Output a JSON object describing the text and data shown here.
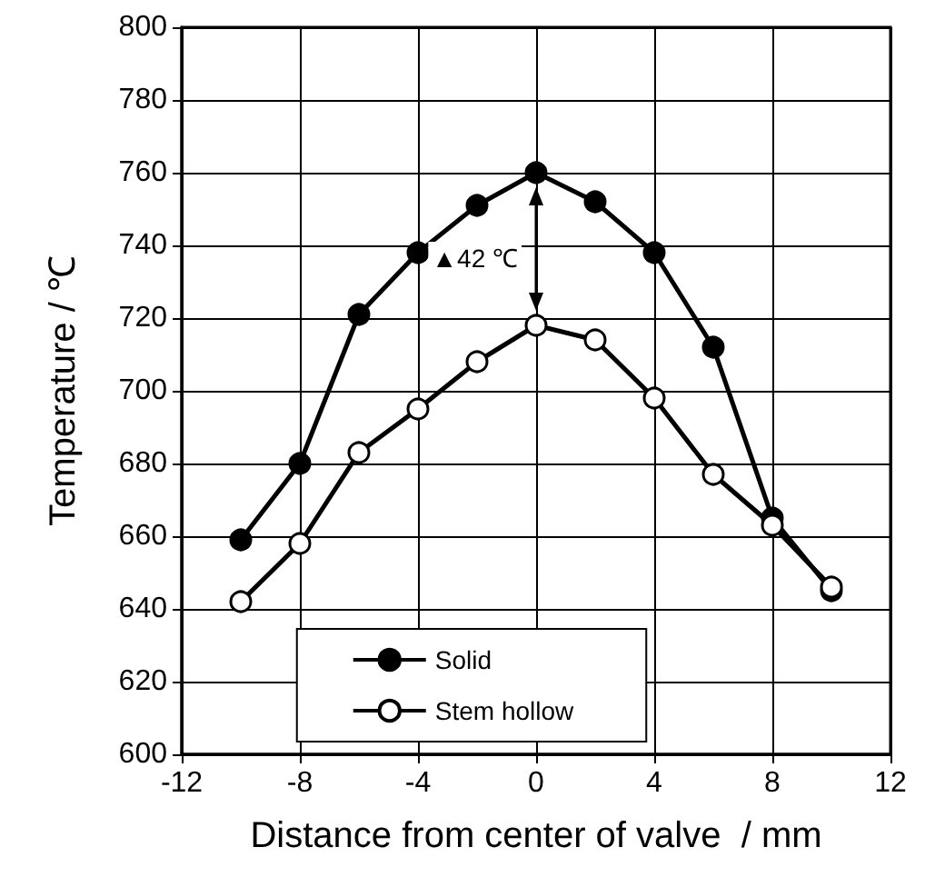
{
  "chart_data": {
    "type": "line",
    "xlabel": "Distance from center of valve  / mm",
    "ylabel": "Temperature / ℃",
    "x": [
      -10,
      -8,
      -6,
      -4,
      -2,
      0,
      2,
      4,
      6,
      8,
      10
    ],
    "series": [
      {
        "name": "Solid",
        "color": "#000000",
        "marker": "circle",
        "values": [
          659,
          680,
          721,
          738,
          751,
          760,
          752,
          738,
          712,
          665,
          645
        ]
      },
      {
        "name": "Stem hollow",
        "color": "#000000",
        "marker": "circle_open",
        "values": [
          642,
          658,
          683,
          695,
          708,
          718,
          714,
          698,
          677,
          663,
          646
        ]
      }
    ],
    "annotations": [
      {
        "text": "▲42 ℃",
        "x": 0,
        "y": 760
      }
    ],
    "xlim": [
      -12,
      12
    ],
    "xticks": [
      -12,
      -8,
      -4,
      0,
      4,
      8,
      12
    ],
    "ylim": [
      600,
      800
    ],
    "yticks": [
      600,
      620,
      640,
      660,
      680,
      700,
      720,
      740,
      760,
      780,
      800
    ],
    "grid": true,
    "legend": "bottom",
    "line_style": "solid"
  }
}
